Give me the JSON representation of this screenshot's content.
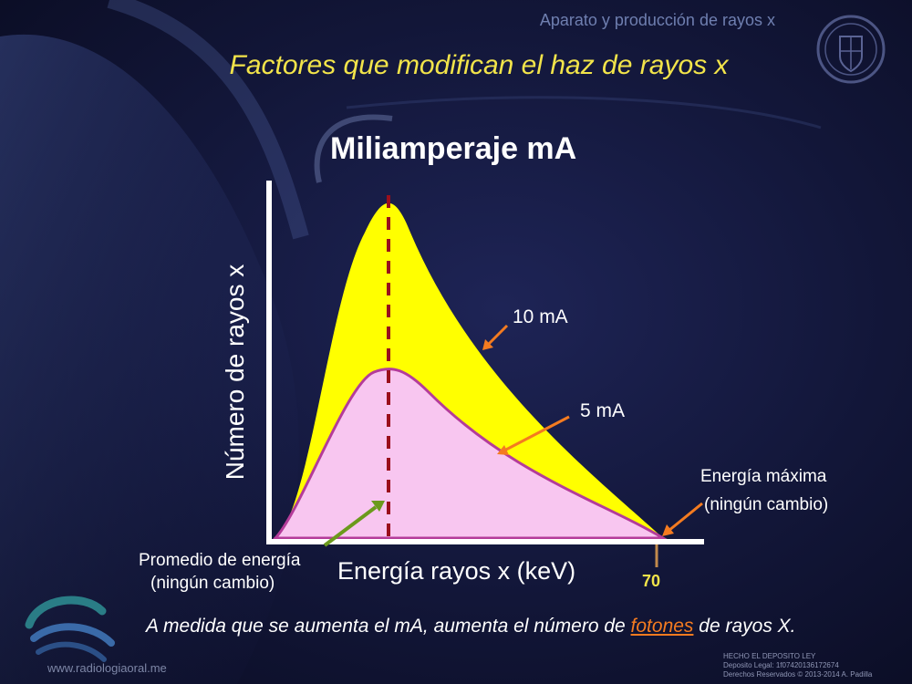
{
  "header": "Aparato y producción de rayos x",
  "title": "Factores que modifican el haz de rayos x",
  "subtitle": "Miliamperaje mA",
  "diagram": {
    "y_label": "Número de rayos x",
    "x_label": "Energía  rayos x (keV)",
    "curve_high_label": "10 mA",
    "curve_low_label": "5 mA",
    "max_energy_line1": "Energía máxima",
    "max_energy_line2": "(ningún cambio)",
    "avg_energy_line1": "Promedio de energía",
    "avg_energy_line2": "(ningún cambio)",
    "max_energy_value": "70",
    "colors": {
      "high_fill": "#ffff00",
      "low_fill": "#f8c6f0",
      "low_stroke": "#b43c9a",
      "arrow_orange": "#f47b20",
      "arrow_green": "#6b9a1c",
      "dash": "#9a0f1c"
    }
  },
  "caption": {
    "part1": "A medida que se aumenta el mA, aumenta el número de ",
    "highlight": "fotones",
    "part2": " de rayos X."
  },
  "footer": {
    "url": "www.radiologiaoral.me",
    "legal1": "HECHO EL DEPOSITO LEY",
    "legal2": "Deposito Legal: 1f07420136172674",
    "legal3": "Derechos Reservados © 2013-2014 A. Padilla"
  }
}
